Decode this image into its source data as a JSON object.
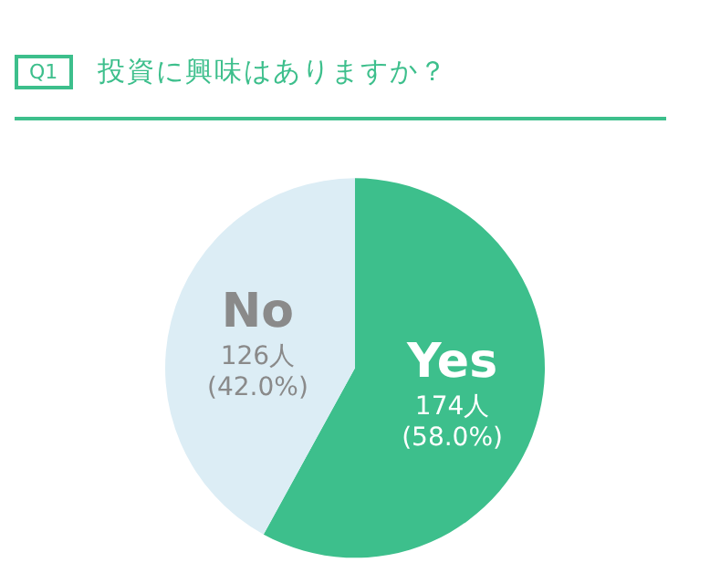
{
  "chart_data": {
    "type": "pie",
    "title": "投資に興味はありますか？",
    "annotations": [
      "Q1"
    ],
    "categories": [
      "Yes",
      "No"
    ],
    "values": [
      174,
      126
    ],
    "colors": [
      "#3dbf8c",
      "#dcedf5"
    ],
    "value_labels": [
      "174人\n(58.0%)",
      "126人\n(42.0%)"
    ]
  }
}
